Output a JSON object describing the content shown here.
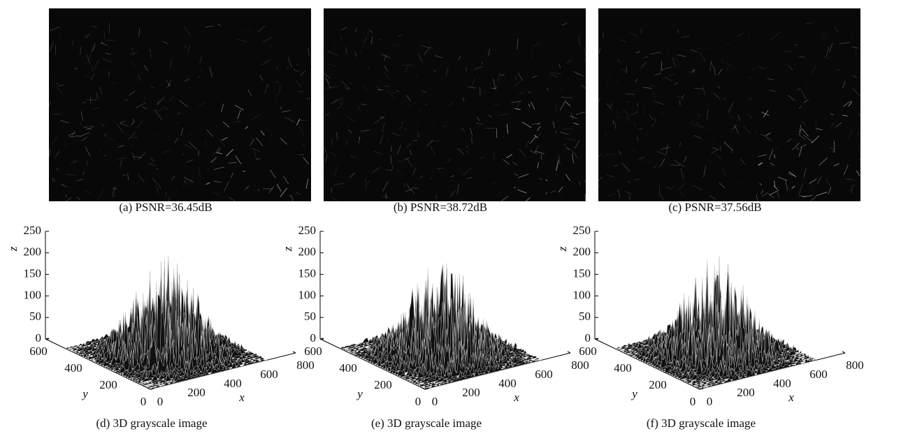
{
  "figure": {
    "images": [
      {
        "caption": "(a) PSNR=36.45dB"
      },
      {
        "caption": "(b) PSNR=38.72dB"
      },
      {
        "caption": "(c) PSNR=37.56dB"
      }
    ],
    "plots": [
      {
        "caption": "(d) 3D grayscale image",
        "x_label": "x",
        "y_label": "y",
        "z_label": "z",
        "xlim": [
          0,
          800
        ],
        "ylim": [
          0,
          600
        ],
        "zlim": [
          0,
          250
        ],
        "xticks": [
          0,
          200,
          400,
          600,
          800
        ],
        "yticks": [
          0,
          200,
          400,
          600
        ],
        "zticks": [
          0,
          50,
          100,
          150,
          200,
          250
        ]
      },
      {
        "caption": "(e) 3D grayscale image",
        "x_label": "x",
        "y_label": "y",
        "z_label": "z",
        "xlim": [
          0,
          800
        ],
        "ylim": [
          0,
          600
        ],
        "zlim": [
          0,
          250
        ],
        "xticks": [
          0,
          200,
          400,
          600,
          800
        ],
        "yticks": [
          0,
          200,
          400,
          600
        ],
        "zticks": [
          0,
          50,
          100,
          150,
          200,
          250
        ]
      },
      {
        "caption": "(f) 3D grayscale image",
        "x_label": "x",
        "y_label": "y",
        "z_label": "z",
        "xlim": [
          0,
          800
        ],
        "ylim": [
          0,
          600
        ],
        "zlim": [
          0,
          250
        ],
        "xticks": [
          0,
          200,
          400,
          600,
          800
        ],
        "yticks": [
          0,
          200,
          400,
          600
        ],
        "zticks": [
          0,
          50,
          100,
          150,
          200,
          250
        ]
      }
    ]
  }
}
